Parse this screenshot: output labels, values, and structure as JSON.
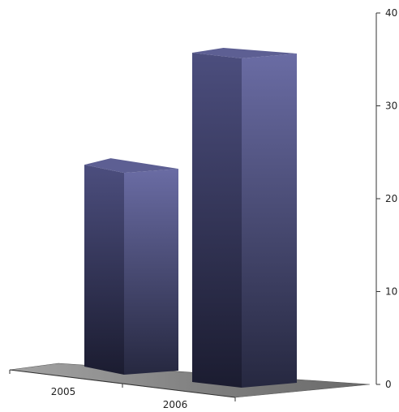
{
  "chart_data": {
    "type": "bar",
    "categories": [
      "2005",
      "2006"
    ],
    "values": [
      23.7,
      35.3
    ],
    "ylim": [
      0,
      40
    ],
    "yticks": [
      0,
      10,
      20,
      30,
      40
    ],
    "grid": false,
    "legend": "none",
    "colors": {
      "bar_front_top": "#6a6ca4",
      "bar_front_bottom": "#262840",
      "bar_side_top": "#4c4e7e",
      "bar_side_bottom": "#1b1c30",
      "bar_top": "#5d5f93",
      "floor": "#808080"
    }
  }
}
